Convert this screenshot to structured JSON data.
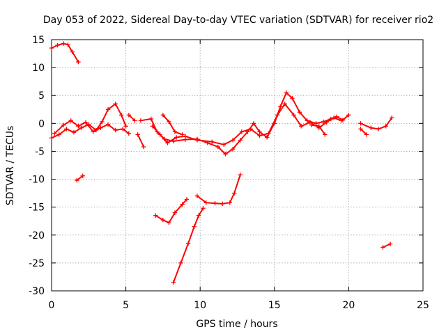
{
  "chart_data": {
    "type": "scatter",
    "title": "Day 053 of 2022, Sidereal Day-to-day VTEC variation (SDTVAR) for receiver rio2",
    "xlabel": "GPS time / hours",
    "ylabel": "SDTVAR / TECUs",
    "xlim": [
      0,
      25
    ],
    "ylim": [
      -30,
      15
    ],
    "xticks": [
      0,
      5,
      10,
      15,
      20,
      25
    ],
    "yticks": [
      -30,
      -25,
      -20,
      -15,
      -10,
      -5,
      0,
      5,
      10,
      15
    ],
    "grid": true,
    "marker": "+",
    "color": "#ff0000",
    "series": [
      {
        "name": "s1",
        "points": [
          [
            0.0,
            13.5
          ],
          [
            0.4,
            14.0
          ],
          [
            0.8,
            14.3
          ],
          [
            1.1,
            14.1
          ],
          [
            1.4,
            12.8
          ],
          [
            1.8,
            11.0
          ]
        ]
      },
      {
        "name": "s2",
        "points": [
          [
            1.7,
            -10.2
          ],
          [
            2.1,
            -9.4
          ]
        ]
      },
      {
        "name": "s3",
        "points": [
          [
            0.0,
            -2.6
          ],
          [
            0.5,
            -2.0
          ],
          [
            1.0,
            -1.0
          ],
          [
            1.5,
            -1.6
          ],
          [
            2.0,
            -0.8
          ],
          [
            2.5,
            -0.2
          ],
          [
            3.0,
            -1.2
          ],
          [
            3.4,
            0.3
          ],
          [
            3.8,
            2.5
          ],
          [
            4.3,
            3.5
          ],
          [
            4.7,
            1.5
          ],
          [
            5.0,
            -0.5
          ]
        ]
      },
      {
        "name": "s4",
        "points": [
          [
            0.2,
            -1.8
          ],
          [
            0.8,
            -0.3
          ],
          [
            1.3,
            0.5
          ],
          [
            1.8,
            -0.5
          ],
          [
            2.3,
            0.2
          ],
          [
            2.8,
            -1.5
          ],
          [
            3.3,
            -0.8
          ],
          [
            3.8,
            -0.2
          ],
          [
            4.3,
            -1.2
          ],
          [
            4.8,
            -1.0
          ],
          [
            5.2,
            -1.8
          ]
        ]
      },
      {
        "name": "s5",
        "points": [
          [
            5.2,
            1.5
          ],
          [
            5.6,
            0.5
          ]
        ]
      },
      {
        "name": "s6",
        "points": [
          [
            5.8,
            -2.0
          ],
          [
            6.2,
            -4.2
          ]
        ]
      },
      {
        "name": "s7",
        "points": [
          [
            6.0,
            0.5
          ],
          [
            6.7,
            0.8
          ],
          [
            7.1,
            -1.5
          ],
          [
            7.6,
            -2.8
          ],
          [
            8.2,
            -3.2
          ],
          [
            9.0,
            -2.9
          ],
          [
            9.8,
            -2.8
          ],
          [
            10.5,
            -3.5
          ],
          [
            11.2,
            -4.2
          ],
          [
            11.7,
            -5.5
          ],
          [
            12.2,
            -4.6
          ],
          [
            12.7,
            -3.0
          ],
          [
            13.2,
            -1.5
          ],
          [
            13.6,
            0.0
          ],
          [
            14.0,
            -1.5
          ],
          [
            14.5,
            -2.5
          ],
          [
            15.0,
            0.0
          ],
          [
            15.4,
            3.0
          ],
          [
            15.8,
            5.5
          ],
          [
            16.2,
            4.5
          ],
          [
            16.7,
            2.0
          ],
          [
            17.2,
            0.5
          ],
          [
            17.8,
            0.0
          ],
          [
            18.3,
            0.3
          ],
          [
            18.8,
            0.8
          ],
          [
            19.2,
            1.2
          ],
          [
            19.6,
            0.6
          ],
          [
            20.0,
            1.5
          ]
        ]
      },
      {
        "name": "s8",
        "points": [
          [
            6.8,
            -0.5
          ],
          [
            7.3,
            -2.0
          ],
          [
            7.8,
            -3.5
          ],
          [
            8.4,
            -2.5
          ],
          [
            9.0,
            -2.3
          ],
          [
            9.8,
            -3.0
          ],
          [
            10.8,
            -3.3
          ],
          [
            11.6,
            -3.8
          ],
          [
            12.2,
            -3.0
          ],
          [
            12.8,
            -1.5
          ],
          [
            13.4,
            -1.0
          ],
          [
            14.0,
            -2.2
          ],
          [
            14.6,
            -1.8
          ],
          [
            15.2,
            1.5
          ],
          [
            15.7,
            3.5
          ],
          [
            16.3,
            1.5
          ],
          [
            16.8,
            -0.5
          ],
          [
            17.4,
            0.2
          ],
          [
            18.0,
            -0.8
          ],
          [
            18.5,
            0.2
          ],
          [
            19.0,
            1.0
          ],
          [
            19.5,
            0.5
          ]
        ]
      },
      {
        "name": "s9",
        "points": [
          [
            7.5,
            1.5
          ],
          [
            7.9,
            0.3
          ],
          [
            8.3,
            -1.5
          ],
          [
            8.8,
            -2.0
          ]
        ]
      },
      {
        "name": "s10",
        "points": [
          [
            7.0,
            -16.5
          ],
          [
            7.5,
            -17.3
          ],
          [
            7.9,
            -17.8
          ],
          [
            8.3,
            -16.0
          ],
          [
            8.8,
            -14.5
          ],
          [
            9.1,
            -13.6
          ]
        ]
      },
      {
        "name": "s11",
        "points": [
          [
            8.2,
            -28.5
          ],
          [
            8.7,
            -25.0
          ],
          [
            9.2,
            -21.5
          ],
          [
            9.6,
            -18.5
          ],
          [
            9.9,
            -16.5
          ],
          [
            10.2,
            -15.2
          ]
        ]
      },
      {
        "name": "s12",
        "points": [
          [
            9.8,
            -13.0
          ],
          [
            10.4,
            -14.2
          ],
          [
            11.0,
            -14.3
          ],
          [
            11.5,
            -14.4
          ],
          [
            12.0,
            -14.2
          ],
          [
            12.3,
            -12.5
          ],
          [
            12.7,
            -9.2
          ]
        ]
      },
      {
        "name": "s13",
        "points": [
          [
            17.5,
            -0.3
          ],
          [
            18.0,
            -0.5
          ],
          [
            18.4,
            -2.0
          ]
        ]
      },
      {
        "name": "s14",
        "points": [
          [
            20.8,
            -1.0
          ],
          [
            21.2,
            -2.0
          ]
        ]
      },
      {
        "name": "s15",
        "points": [
          [
            20.8,
            0.0
          ],
          [
            21.5,
            -0.8
          ],
          [
            22.0,
            -1.0
          ],
          [
            22.5,
            -0.5
          ],
          [
            22.9,
            1.0
          ]
        ]
      },
      {
        "name": "s16",
        "points": [
          [
            22.3,
            -22.2
          ],
          [
            22.8,
            -21.6
          ]
        ]
      }
    ]
  }
}
